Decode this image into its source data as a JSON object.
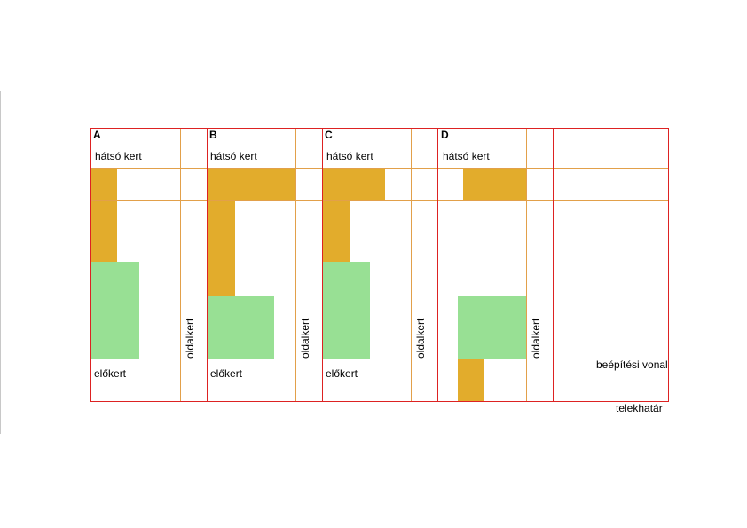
{
  "panels": [
    {
      "letter": "A",
      "rear_label": "hátsó kert",
      "front_label": "előkert",
      "side_label": "oldalkert"
    },
    {
      "letter": "B",
      "rear_label": "hátsó kert",
      "front_label": "előkert",
      "side_label": "oldalkert"
    },
    {
      "letter": "C",
      "rear_label": "hátsó kert",
      "front_label": "előkert",
      "side_label": "oldalkert"
    },
    {
      "letter": "D",
      "rear_label": "hátsó kert",
      "front_label": "",
      "side_label": "oldalkert"
    }
  ],
  "legend": {
    "building_line": "beépítési vonal",
    "plot_boundary": "telekhatár"
  },
  "colors": {
    "plot_border": "#dd2222",
    "zone_line": "#e2a04a",
    "built_area": "#e2ac2c",
    "green_area": "#98e094"
  }
}
